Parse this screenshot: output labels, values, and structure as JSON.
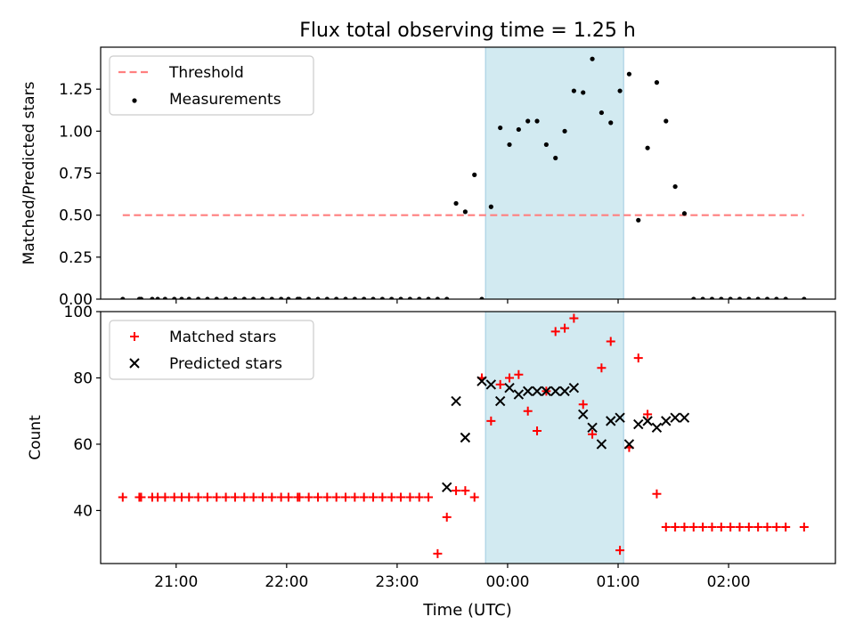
{
  "chart_data": [
    {
      "type": "scatter",
      "title": "Flux total observing time = 1.25 h",
      "xlabel": "",
      "ylabel": "Matched/Predicted stars",
      "xlim": [
        "20:19",
        "02:58"
      ],
      "ylim": [
        0,
        1.5
      ],
      "yticks": [
        0.0,
        0.25,
        0.5,
        0.75,
        1.0,
        1.25
      ],
      "ytick_labels": [
        "0.00",
        "0.25",
        "0.50",
        "0.75",
        "1.00",
        "1.25"
      ],
      "xticks": [
        "21:00",
        "22:00",
        "23:00",
        "00:00",
        "01:00",
        "02:00"
      ],
      "xtick_labels_shown": false,
      "grid": false,
      "legend": "upper left",
      "shaded_interval": {
        "x": [
          "23:48",
          "01:03"
        ],
        "color": "#add8e6"
      },
      "series": [
        {
          "name": "Threshold",
          "kind": "dashed-line",
          "color": "#ff7f7f",
          "x": [
            "20:31",
            "02:41"
          ],
          "y": [
            0.5,
            0.5
          ]
        },
        {
          "name": "Measurements",
          "kind": "points",
          "color": "#000000",
          "x": [
            "20:31",
            "20:40",
            "20:41",
            "20:47",
            "20:50",
            "20:54",
            "20:59",
            "21:03",
            "21:07",
            "21:12",
            "21:17",
            "21:22",
            "21:27",
            "21:32",
            "21:37",
            "21:42",
            "21:47",
            "21:52",
            "21:57",
            "22:01",
            "22:06",
            "22:07",
            "22:12",
            "22:17",
            "22:22",
            "22:27",
            "22:32",
            "22:37",
            "22:42",
            "22:47",
            "22:52",
            "22:57",
            "23:02",
            "23:07",
            "23:12",
            "23:17",
            "23:22",
            "23:27",
            "23:32",
            "23:37",
            "23:42",
            "23:46",
            "23:51",
            "23:56",
            "00:01",
            "00:06",
            "00:11",
            "00:16",
            "00:21",
            "00:26",
            "00:31",
            "00:36",
            "00:41",
            "00:46",
            "00:51",
            "00:56",
            "01:01",
            "01:06",
            "01:11",
            "01:16",
            "01:21",
            "01:26",
            "01:31",
            "01:36",
            "01:41",
            "01:46",
            "01:51",
            "01:56",
            "02:01",
            "02:06",
            "02:11",
            "02:16",
            "02:21",
            "02:26",
            "02:31",
            "02:41"
          ],
          "y": [
            0,
            0,
            0,
            0,
            0,
            0,
            0,
            0,
            0,
            0,
            0,
            0,
            0,
            0,
            0,
            0,
            0,
            0,
            0,
            0,
            0,
            0,
            0,
            0,
            0,
            0,
            0,
            0,
            0,
            0,
            0,
            0,
            0,
            0,
            0,
            0,
            0,
            0,
            0.57,
            0.52,
            0.74,
            0,
            0.55,
            1.02,
            0.92,
            1.01,
            1.06,
            1.06,
            0.92,
            0.84,
            1.0,
            1.24,
            1.23,
            1.43,
            1.11,
            1.05,
            1.24,
            1.34,
            0.47,
            0.9,
            1.29,
            1.06,
            0.67,
            0.51,
            0,
            0,
            0,
            0,
            0,
            0,
            0,
            0,
            0,
            0,
            0,
            0
          ]
        }
      ]
    },
    {
      "type": "scatter",
      "title": "",
      "xlabel": "Time (UTC)",
      "ylabel": "Count",
      "xlim": [
        "20:19",
        "02:58"
      ],
      "ylim": [
        24,
        100
      ],
      "yticks": [
        40,
        60,
        80,
        100
      ],
      "ytick_labels": [
        "40",
        "60",
        "80",
        "100"
      ],
      "xticks": [
        "21:00",
        "22:00",
        "23:00",
        "00:00",
        "01:00",
        "02:00"
      ],
      "xtick_labels": [
        "21:00",
        "22:00",
        "23:00",
        "00:00",
        "01:00",
        "02:00"
      ],
      "grid": false,
      "legend": "upper left",
      "shaded_interval": {
        "x": [
          "23:48",
          "01:03"
        ],
        "color": "#add8e6"
      },
      "series": [
        {
          "name": "Matched stars",
          "marker": "plus",
          "color": "#ff0000",
          "x": [
            "20:31",
            "20:40",
            "20:41",
            "20:47",
            "20:50",
            "20:54",
            "20:59",
            "21:03",
            "21:07",
            "21:12",
            "21:17",
            "21:22",
            "21:27",
            "21:32",
            "21:37",
            "21:42",
            "21:47",
            "21:52",
            "21:57",
            "22:01",
            "22:06",
            "22:07",
            "22:12",
            "22:17",
            "22:22",
            "22:27",
            "22:32",
            "22:37",
            "22:42",
            "22:47",
            "22:52",
            "22:57",
            "23:02",
            "23:07",
            "23:12",
            "23:17",
            "23:22",
            "23:27",
            "23:32",
            "23:37",
            "23:42",
            "23:46",
            "23:51",
            "23:56",
            "00:01",
            "00:06",
            "00:11",
            "00:16",
            "00:21",
            "00:26",
            "00:31",
            "00:36",
            "00:41",
            "00:46",
            "00:51",
            "00:56",
            "01:01",
            "01:06",
            "01:11",
            "01:16",
            "01:21",
            "01:26",
            "01:31",
            "01:36",
            "01:41",
            "01:46",
            "01:51",
            "01:56",
            "02:01",
            "02:06",
            "02:11",
            "02:16",
            "02:21",
            "02:26",
            "02:31",
            "02:41"
          ],
          "y": [
            44,
            44,
            44,
            44,
            44,
            44,
            44,
            44,
            44,
            44,
            44,
            44,
            44,
            44,
            44,
            44,
            44,
            44,
            44,
            44,
            44,
            44,
            44,
            44,
            44,
            44,
            44,
            44,
            44,
            44,
            44,
            44,
            44,
            44,
            44,
            44,
            27,
            38,
            46,
            46,
            44,
            80,
            67,
            78,
            80,
            81,
            70,
            64,
            76,
            94,
            95,
            98,
            72,
            63,
            83,
            91,
            28,
            59,
            86,
            69,
            45,
            35,
            35,
            35,
            35,
            35,
            35,
            35,
            35,
            35,
            35,
            35,
            35,
            35,
            35,
            35
          ]
        },
        {
          "name": "Predicted stars",
          "marker": "x",
          "color": "#000000",
          "x": [
            "23:27",
            "23:32",
            "23:37",
            "23:46",
            "23:51",
            "23:56",
            "00:01",
            "00:06",
            "00:11",
            "00:16",
            "00:21",
            "00:26",
            "00:31",
            "00:36",
            "00:41",
            "00:46",
            "00:51",
            "00:56",
            "01:01",
            "01:06",
            "01:11",
            "01:16",
            "01:21",
            "01:26",
            "01:31",
            "01:36"
          ],
          "y": [
            47,
            73,
            62,
            79,
            78,
            73,
            77,
            75,
            76,
            76,
            76,
            76,
            76,
            77,
            69,
            65,
            60,
            67,
            68,
            60,
            66,
            67,
            65,
            67,
            68,
            68
          ]
        }
      ]
    }
  ]
}
